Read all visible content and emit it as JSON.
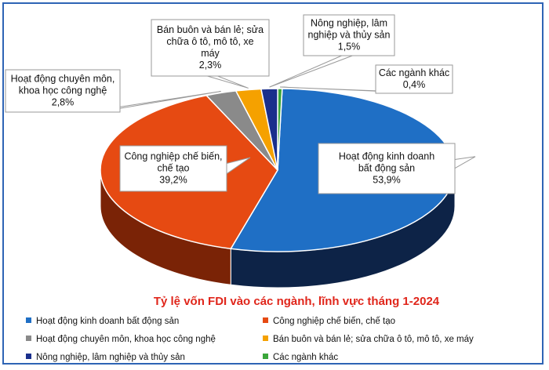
{
  "chart_data": {
    "type": "pie",
    "title": "Tỷ lệ vốn FDI vào các ngành, lĩnh vực tháng 1-2024",
    "unit": "%",
    "slices": [
      {
        "name": "Hoạt động kinh doanh bất động sản",
        "callout": [
          "Hoạt động kinh doanh",
          "bất động sản"
        ],
        "value": 53.9,
        "value_label": "53,9%",
        "color": "#1f6fc5",
        "side": "#0d2347"
      },
      {
        "name": "Công nghiệp chế biến, chế tạo",
        "callout": [
          "Công nghiệp chế biến,",
          "chế tạo"
        ],
        "value": 39.2,
        "value_label": "39,2%",
        "color": "#e64a12",
        "side": "#7a2306"
      },
      {
        "name": "Hoạt động chuyên môn, khoa học công nghệ",
        "callout": [
          "Hoạt động chuyên môn,",
          "khoa học công nghệ"
        ],
        "value": 2.8,
        "value_label": "2,8%",
        "color": "#8a8a8a",
        "side": "#4a4a4a"
      },
      {
        "name": "Bán buôn và bán lẻ; sửa chữa ô tô, mô tô, xe máy",
        "callout": [
          "Bán buôn và bán lẻ; sửa",
          "chữa ô tô, mô tô, xe",
          "máy"
        ],
        "value": 2.3,
        "value_label": "2,3%",
        "color": "#f5a100",
        "side": "#8a5a00"
      },
      {
        "name": "Nông nghiệp, lâm nghiệp và thủy sản",
        "callout": [
          "Nông nghiệp, lâm",
          "nghiệp và thủy sản"
        ],
        "value": 1.5,
        "value_label": "1,5%",
        "color": "#1a2f8c",
        "side": "#0b1640"
      },
      {
        "name": "Các ngành khác",
        "callout": [
          "Các ngành khác"
        ],
        "value": 0.4,
        "value_label": "0,4%",
        "color": "#3aa63a",
        "side": "#1c5a1c"
      }
    ],
    "legend_position": "bottom"
  }
}
